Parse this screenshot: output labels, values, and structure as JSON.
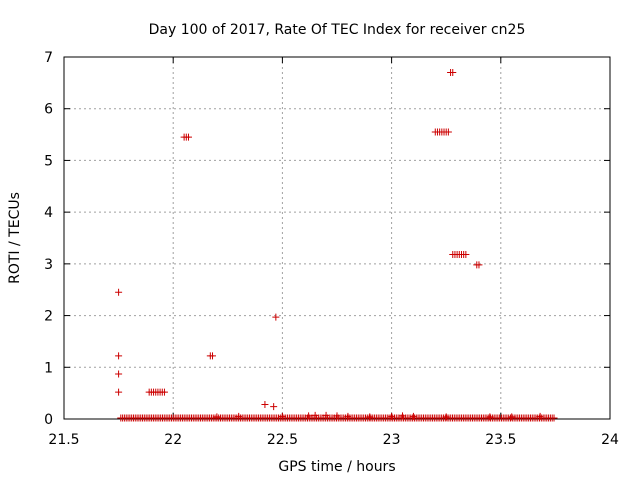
{
  "chart_data": {
    "type": "scatter",
    "title": "Day 100 of 2017, Rate Of TEC Index for receiver cn25",
    "xlabel": "GPS time / hours",
    "ylabel": "ROTI / TECUs",
    "xlim": [
      21.5,
      24
    ],
    "ylim": [
      0,
      7
    ],
    "xticks": [
      "21.5",
      "22",
      "22.5",
      "23",
      "23.5",
      "24"
    ],
    "yticks": [
      "0",
      "1",
      "2",
      "3",
      "4",
      "5",
      "6",
      "7"
    ],
    "grid": true,
    "marker": "+",
    "color": "#cc0000",
    "baseline": {
      "x_start": 21.76,
      "x_end": 23.75,
      "step": 0.0083,
      "y": 0.02
    },
    "points": [
      [
        21.75,
        2.45
      ],
      [
        21.75,
        1.22
      ],
      [
        21.75,
        0.87
      ],
      [
        21.75,
        0.52
      ],
      [
        21.89,
        0.52
      ],
      [
        21.9,
        0.52
      ],
      [
        21.91,
        0.52
      ],
      [
        21.92,
        0.52
      ],
      [
        21.93,
        0.52
      ],
      [
        21.94,
        0.52
      ],
      [
        21.95,
        0.52
      ],
      [
        21.96,
        0.52
      ],
      [
        22.05,
        5.45
      ],
      [
        22.06,
        5.45
      ],
      [
        22.07,
        5.45
      ],
      [
        22.17,
        1.22
      ],
      [
        22.18,
        1.22
      ],
      [
        22.42,
        0.28
      ],
      [
        22.46,
        0.24
      ],
      [
        22.47,
        1.97
      ],
      [
        22.2,
        0.04
      ],
      [
        22.3,
        0.05
      ],
      [
        22.5,
        0.05
      ],
      [
        22.62,
        0.06
      ],
      [
        22.65,
        0.07
      ],
      [
        22.7,
        0.07
      ],
      [
        22.75,
        0.06
      ],
      [
        22.8,
        0.05
      ],
      [
        22.9,
        0.04
      ],
      [
        23.0,
        0.05
      ],
      [
        23.05,
        0.06
      ],
      [
        23.1,
        0.05
      ],
      [
        23.25,
        0.04
      ],
      [
        23.45,
        0.04
      ],
      [
        23.55,
        0.04
      ],
      [
        23.68,
        0.05
      ],
      [
        23.27,
        6.7
      ],
      [
        23.28,
        6.7
      ],
      [
        23.2,
        5.55
      ],
      [
        23.21,
        5.55
      ],
      [
        23.22,
        5.55
      ],
      [
        23.23,
        5.55
      ],
      [
        23.24,
        5.55
      ],
      [
        23.25,
        5.55
      ],
      [
        23.26,
        5.55
      ],
      [
        23.28,
        3.18
      ],
      [
        23.29,
        3.18
      ],
      [
        23.3,
        3.18
      ],
      [
        23.31,
        3.18
      ],
      [
        23.32,
        3.18
      ],
      [
        23.33,
        3.18
      ],
      [
        23.34,
        3.18
      ],
      [
        23.39,
        2.98
      ],
      [
        23.4,
        2.98
      ]
    ]
  }
}
